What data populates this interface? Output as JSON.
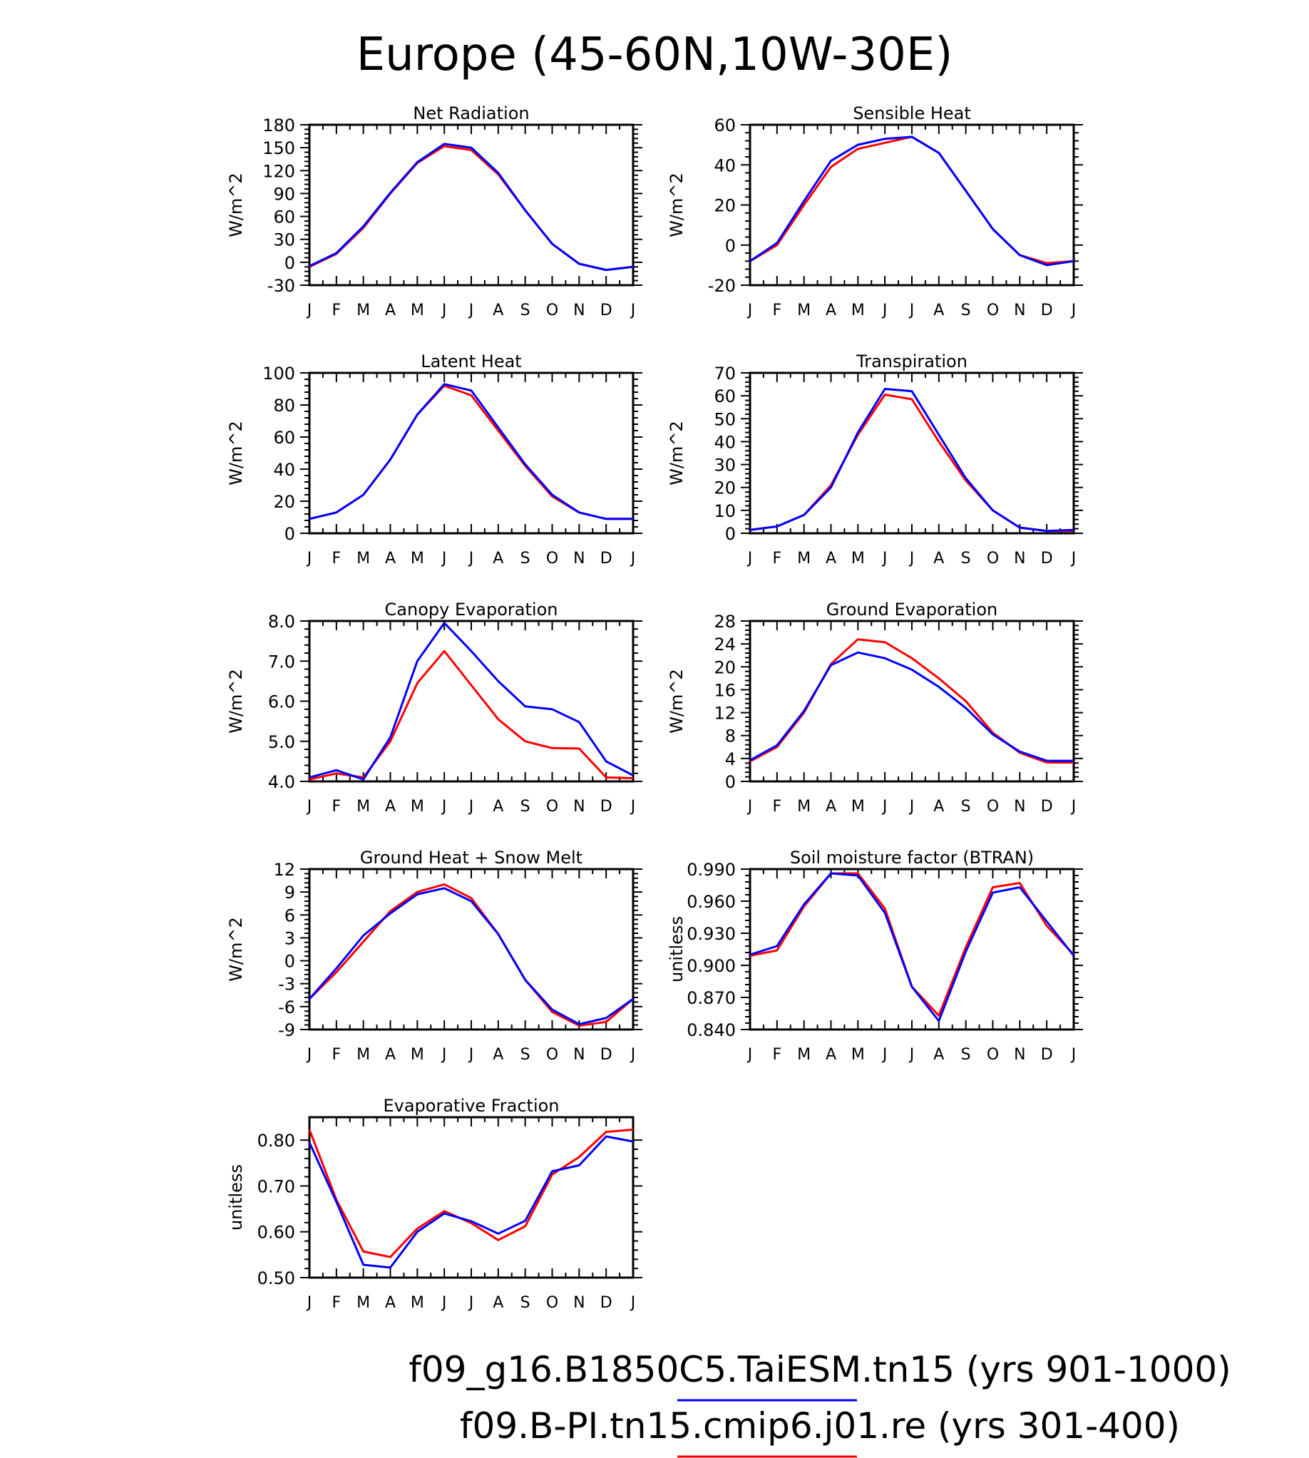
{
  "page_title": "Europe (45-60N,10W-30E)",
  "months": [
    "J",
    "F",
    "M",
    "A",
    "M",
    "J",
    "J",
    "A",
    "S",
    "O",
    "N",
    "D",
    "J"
  ],
  "colors": {
    "blue": "#0000ff",
    "red": "#ff0000",
    "axis": "#000000"
  },
  "legend": [
    {
      "label": "f09_g16.B1850C5.TaiESM.tn15 (yrs 901-1000)",
      "color": "#0000ff"
    },
    {
      "label": "f09.B-PI.tn15.cmip6.j01.re (yrs 301-400)",
      "color": "#ff0000"
    }
  ],
  "chart_data": [
    {
      "type": "line",
      "title": "Net Radiation",
      "ylabel": "W/m^2",
      "ylim": [
        -30,
        180
      ],
      "yticks": [
        -30,
        0,
        30,
        60,
        90,
        120,
        150,
        180
      ],
      "ytick_labels": [
        "-30",
        "0",
        "30",
        "60",
        "90",
        "120",
        "150",
        "180"
      ],
      "series": [
        {
          "color": "#ff0000",
          "values": [
            -6,
            11,
            45,
            90,
            130,
            152,
            147,
            115,
            68,
            24,
            -2,
            -10,
            -6
          ]
        },
        {
          "color": "#0000ff",
          "values": [
            -5,
            12,
            47,
            91,
            131,
            155,
            150,
            117,
            68,
            24,
            -2,
            -10,
            -6
          ]
        }
      ]
    },
    {
      "type": "line",
      "title": "Sensible Heat",
      "ylabel": "W/m^2",
      "ylim": [
        -20,
        60
      ],
      "yticks": [
        -20,
        0,
        20,
        40,
        60
      ],
      "ytick_labels": [
        "-20",
        "0",
        "20",
        "40",
        "60"
      ],
      "series": [
        {
          "color": "#ff0000",
          "values": [
            -8,
            0,
            20,
            39,
            48,
            51,
            54,
            46,
            27,
            8,
            -5,
            -9,
            -8
          ]
        },
        {
          "color": "#0000ff",
          "values": [
            -8,
            1,
            22,
            42,
            50,
            53,
            54,
            46,
            27,
            8,
            -5,
            -10,
            -8
          ]
        }
      ]
    },
    {
      "type": "line",
      "title": "Latent Heat",
      "ylabel": "W/m^2",
      "ylim": [
        0,
        100
      ],
      "yticks": [
        0,
        20,
        40,
        60,
        80,
        100
      ],
      "ytick_labels": [
        "0",
        "20",
        "40",
        "60",
        "80",
        "100"
      ],
      "series": [
        {
          "color": "#ff0000",
          "values": [
            9,
            13,
            24,
            46,
            74,
            92,
            86,
            64,
            42,
            23,
            13,
            9,
            9
          ]
        },
        {
          "color": "#0000ff",
          "values": [
            9,
            13,
            24,
            46,
            74,
            93,
            89,
            66,
            43,
            24,
            13,
            9,
            9
          ]
        }
      ]
    },
    {
      "type": "line",
      "title": "Transpiration",
      "ylabel": "W/m^2",
      "ylim": [
        0,
        70
      ],
      "yticks": [
        0,
        10,
        20,
        30,
        40,
        50,
        60,
        70
      ],
      "ytick_labels": [
        "0",
        "10",
        "20",
        "30",
        "40",
        "50",
        "60",
        "70"
      ],
      "series": [
        {
          "color": "#ff0000",
          "values": [
            1.5,
            3,
            8,
            21,
            43,
            60.5,
            58.5,
            40,
            23,
            10,
            2.5,
            1,
            1
          ]
        },
        {
          "color": "#0000ff",
          "values": [
            1.5,
            3,
            8,
            20,
            44,
            63,
            62,
            43,
            24,
            10,
            2.5,
            1,
            1.5
          ]
        }
      ]
    },
    {
      "type": "line",
      "title": "Canopy Evaporation",
      "ylabel": "W/m^2",
      "ylim": [
        4.0,
        8.0
      ],
      "yticks": [
        4.0,
        5.0,
        6.0,
        7.0,
        8.0
      ],
      "ytick_labels": [
        "4.0",
        "5.0",
        "6.0",
        "7.0",
        "8.0"
      ],
      "series": [
        {
          "color": "#ff0000",
          "values": [
            4.05,
            4.2,
            4.1,
            5.0,
            6.45,
            7.25,
            6.4,
            5.55,
            5.0,
            4.83,
            4.82,
            4.1,
            4.08
          ]
        },
        {
          "color": "#0000ff",
          "values": [
            4.1,
            4.28,
            4.05,
            5.1,
            7.0,
            7.95,
            7.25,
            6.5,
            5.87,
            5.8,
            5.48,
            4.5,
            4.15
          ]
        }
      ]
    },
    {
      "type": "line",
      "title": "Ground Evaporation",
      "ylabel": "W/m^2",
      "ylim": [
        0,
        28
      ],
      "yticks": [
        0,
        4,
        8,
        12,
        16,
        20,
        24,
        28
      ],
      "ytick_labels": [
        "0",
        "4",
        "8",
        "12",
        "16",
        "20",
        "24",
        "28"
      ],
      "series": [
        {
          "color": "#ff0000",
          "values": [
            3.5,
            6,
            12,
            20.5,
            24.8,
            24.3,
            21.5,
            18,
            14,
            8.5,
            5,
            3.3,
            3.3
          ]
        },
        {
          "color": "#0000ff",
          "values": [
            3.7,
            6.3,
            12.3,
            20.3,
            22.5,
            21.5,
            19.5,
            16.5,
            12.8,
            8.2,
            5.2,
            3.6,
            3.6
          ]
        }
      ]
    },
    {
      "type": "line",
      "title": "Ground Heat + Snow Melt",
      "ylabel": "W/m^2",
      "ylim": [
        -9,
        12
      ],
      "yticks": [
        -9,
        -6,
        -3,
        0,
        3,
        6,
        9,
        12
      ],
      "ytick_labels": [
        "-9",
        "-6",
        "-3",
        "0",
        "3",
        "6",
        "9",
        "12"
      ],
      "series": [
        {
          "color": "#ff0000",
          "values": [
            -5,
            -1.5,
            2.5,
            6.5,
            9,
            10,
            8.2,
            3.5,
            -2.5,
            -6.7,
            -8.5,
            -8,
            -5
          ]
        },
        {
          "color": "#0000ff",
          "values": [
            -5,
            -1,
            3.3,
            6.2,
            8.7,
            9.5,
            7.8,
            3.5,
            -2.5,
            -6.4,
            -8.3,
            -7.5,
            -5
          ]
        }
      ]
    },
    {
      "type": "line",
      "title": "Soil moisture factor (BTRAN)",
      "ylabel": "unitless",
      "ylim": [
        0.84,
        0.99
      ],
      "yticks": [
        0.84,
        0.87,
        0.9,
        0.93,
        0.96,
        0.99
      ],
      "ytick_labels": [
        "0.840",
        "0.870",
        "0.900",
        "0.930",
        "0.960",
        "0.990"
      ],
      "series": [
        {
          "color": "#ff0000",
          "values": [
            0.909,
            0.914,
            0.955,
            0.986,
            0.986,
            0.953,
            0.88,
            0.853,
            0.917,
            0.973,
            0.977,
            0.937,
            0.91
          ]
        },
        {
          "color": "#0000ff",
          "values": [
            0.91,
            0.918,
            0.957,
            0.986,
            0.984,
            0.949,
            0.88,
            0.848,
            0.913,
            0.968,
            0.973,
            0.941,
            0.909
          ]
        }
      ]
    },
    {
      "type": "line",
      "title": "Evaporative Fraction",
      "ylabel": "unitless",
      "ylim": [
        0.5,
        0.85
      ],
      "yticks": [
        0.5,
        0.6,
        0.7,
        0.8
      ],
      "ytick_labels": [
        "0.50",
        "0.60",
        "0.70",
        "0.80"
      ],
      "series": [
        {
          "color": "#ff0000",
          "values": [
            0.823,
            0.67,
            0.557,
            0.545,
            0.607,
            0.645,
            0.619,
            0.582,
            0.612,
            0.725,
            0.763,
            0.818,
            0.823
          ]
        },
        {
          "color": "#0000ff",
          "values": [
            0.795,
            0.665,
            0.528,
            0.522,
            0.6,
            0.64,
            0.623,
            0.596,
            0.624,
            0.732,
            0.745,
            0.808,
            0.797
          ]
        }
      ]
    }
  ]
}
